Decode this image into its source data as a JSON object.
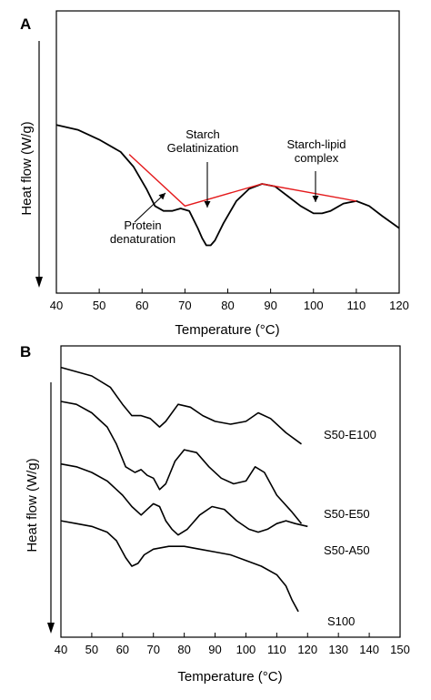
{
  "colors": {
    "curve": "#000000",
    "baseline": "#e41a1c",
    "axis": "#000000"
  },
  "chart_data": [
    {
      "panel": "A",
      "type": "line",
      "xlabel": "Temperature (°C)",
      "ylabel": "Heat flow (W/g)",
      "xlim": [
        40,
        120
      ],
      "ylim": [
        0,
        1
      ],
      "x_ticks": [
        "40",
        "50",
        "60",
        "70",
        "80",
        "90",
        "100",
        "110",
        "120"
      ],
      "y_ticks_shown": false,
      "grid": false,
      "series": [
        {
          "points": [
            [
              40,
              0.64
            ],
            [
              45,
              0.62
            ],
            [
              50,
              0.58
            ],
            [
              55,
              0.53
            ],
            [
              58,
              0.47
            ],
            [
              61,
              0.38
            ],
            [
              63,
              0.31
            ],
            [
              65,
              0.29
            ],
            [
              67,
              0.29
            ],
            [
              69,
              0.3
            ],
            [
              71,
              0.29
            ],
            [
              73,
              0.22
            ],
            [
              74,
              0.18
            ],
            [
              75,
              0.15
            ],
            [
              76,
              0.15
            ],
            [
              77,
              0.17
            ],
            [
              79,
              0.24
            ],
            [
              82,
              0.33
            ],
            [
              85,
              0.38
            ],
            [
              88,
              0.4
            ],
            [
              91,
              0.39
            ],
            [
              94,
              0.35
            ],
            [
              97,
              0.31
            ],
            [
              100,
              0.28
            ],
            [
              102,
              0.28
            ],
            [
              104,
              0.29
            ],
            [
              107,
              0.32
            ],
            [
              110,
              0.33
            ],
            [
              113,
              0.31
            ],
            [
              116,
              0.27
            ],
            [
              120,
              0.22
            ]
          ]
        }
      ],
      "baselines": [
        {
          "points": [
            [
              57,
              0.52
            ],
            [
              70,
              0.31
            ],
            [
              88,
              0.4
            ],
            [
              110,
              0.33
            ]
          ]
        }
      ],
      "annotations": [
        {
          "lines": [
            "Protein",
            "denaturation"
          ],
          "x": 67,
          "y": 0.33
        },
        {
          "lines": [
            "Starch",
            "Gelatinization"
          ],
          "x": 76,
          "y": 0.29
        },
        {
          "lines": [
            "Starch-lipid",
            "complex"
          ],
          "x": 101,
          "y": 0.3
        }
      ]
    },
    {
      "panel": "B",
      "type": "line",
      "xlabel": "Temperature (°C)",
      "ylabel": "Heat flow (W/g)",
      "xlim": [
        40,
        150
      ],
      "ylim": [
        0,
        1
      ],
      "x_ticks": [
        "40",
        "50",
        "60",
        "70",
        "80",
        "90",
        "100",
        "110",
        "120",
        "130",
        "140",
        "150"
      ],
      "y_ticks_shown": false,
      "grid": false,
      "series": [
        {
          "label": "S50-E100",
          "points": [
            [
              40,
              0.95
            ],
            [
              50,
              0.92
            ],
            [
              56,
              0.88
            ],
            [
              60,
              0.82
            ],
            [
              63,
              0.78
            ],
            [
              66,
              0.78
            ],
            [
              69,
              0.77
            ],
            [
              72,
              0.74
            ],
            [
              74,
              0.76
            ],
            [
              78,
              0.82
            ],
            [
              82,
              0.81
            ],
            [
              86,
              0.78
            ],
            [
              90,
              0.76
            ],
            [
              95,
              0.75
            ],
            [
              100,
              0.76
            ],
            [
              104,
              0.79
            ],
            [
              108,
              0.77
            ],
            [
              113,
              0.72
            ],
            [
              118,
              0.68
            ]
          ]
        },
        {
          "label": "S50-E50",
          "points": [
            [
              40,
              0.83
            ],
            [
              45,
              0.82
            ],
            [
              50,
              0.79
            ],
            [
              55,
              0.74
            ],
            [
              58,
              0.68
            ],
            [
              61,
              0.6
            ],
            [
              64,
              0.58
            ],
            [
              66,
              0.59
            ],
            [
              68,
              0.57
            ],
            [
              70,
              0.56
            ],
            [
              72,
              0.52
            ],
            [
              74,
              0.54
            ],
            [
              77,
              0.62
            ],
            [
              80,
              0.66
            ],
            [
              84,
              0.65
            ],
            [
              88,
              0.6
            ],
            [
              92,
              0.56
            ],
            [
              96,
              0.54
            ],
            [
              100,
              0.55
            ],
            [
              103,
              0.6
            ],
            [
              106,
              0.58
            ],
            [
              110,
              0.5
            ],
            [
              115,
              0.44
            ],
            [
              118,
              0.4
            ]
          ]
        },
        {
          "label": "S50-A50",
          "points": [
            [
              40,
              0.61
            ],
            [
              45,
              0.6
            ],
            [
              50,
              0.58
            ],
            [
              55,
              0.55
            ],
            [
              60,
              0.5
            ],
            [
              63,
              0.46
            ],
            [
              66,
              0.43
            ],
            [
              68,
              0.45
            ],
            [
              70,
              0.47
            ],
            [
              72,
              0.46
            ],
            [
              74,
              0.41
            ],
            [
              76,
              0.38
            ],
            [
              78,
              0.36
            ],
            [
              81,
              0.38
            ],
            [
              85,
              0.43
            ],
            [
              89,
              0.46
            ],
            [
              93,
              0.45
            ],
            [
              97,
              0.41
            ],
            [
              101,
              0.38
            ],
            [
              104,
              0.37
            ],
            [
              107,
              0.38
            ],
            [
              110,
              0.4
            ],
            [
              113,
              0.41
            ],
            [
              116,
              0.4
            ],
            [
              120,
              0.39
            ]
          ]
        },
        {
          "label": "S100",
          "points": [
            [
              40,
              0.41
            ],
            [
              45,
              0.4
            ],
            [
              50,
              0.39
            ],
            [
              55,
              0.37
            ],
            [
              58,
              0.34
            ],
            [
              61,
              0.28
            ],
            [
              63,
              0.25
            ],
            [
              65,
              0.26
            ],
            [
              67,
              0.29
            ],
            [
              70,
              0.31
            ],
            [
              75,
              0.32
            ],
            [
              80,
              0.32
            ],
            [
              85,
              0.31
            ],
            [
              90,
              0.3
            ],
            [
              95,
              0.29
            ],
            [
              100,
              0.27
            ],
            [
              105,
              0.25
            ],
            [
              110,
              0.22
            ],
            [
              113,
              0.18
            ],
            [
              115,
              0.13
            ],
            [
              117,
              0.09
            ]
          ]
        }
      ]
    }
  ]
}
